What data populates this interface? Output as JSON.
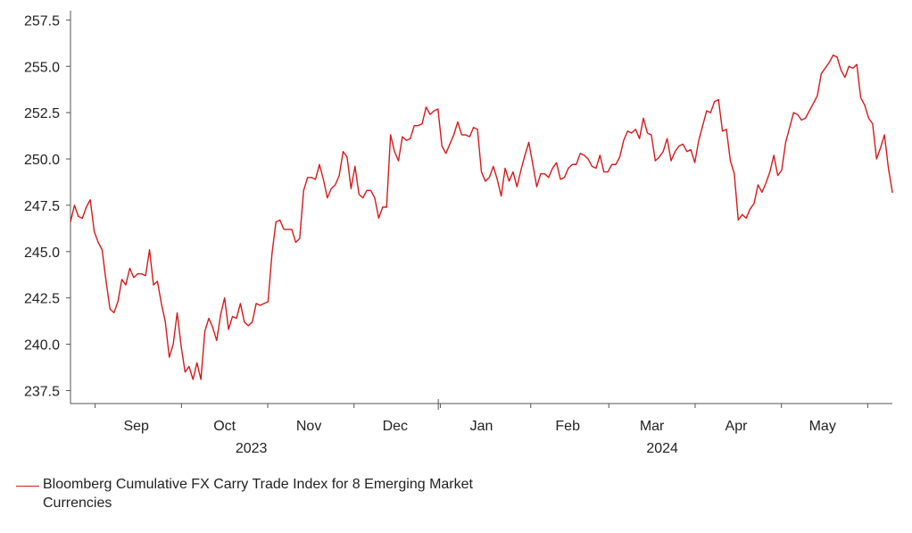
{
  "chart_data": {
    "type": "line",
    "ylim": [
      236.8,
      258.0
    ],
    "y_ticks": [
      "257.5",
      "255.0",
      "252.5",
      "250.0",
      "247.5",
      "245.0",
      "242.5",
      "240.0",
      "237.5"
    ],
    "y_tick_values": [
      257.5,
      255.0,
      252.5,
      250.0,
      247.5,
      245.0,
      242.5,
      240.0,
      237.5
    ],
    "x_range": [
      0,
      200
    ],
    "month_labels": [
      "Sep",
      "Oct",
      "Nov",
      "Dec",
      "Jan",
      "Feb",
      "Mar",
      "Apr",
      "May"
    ],
    "month_centers": [
      16,
      37.5,
      58,
      79,
      100,
      121,
      141.5,
      162,
      183
    ],
    "month_boundaries": [
      6,
      27,
      48,
      69,
      90,
      112,
      131,
      152,
      173,
      194
    ],
    "year_labels": [
      "2023",
      "2024"
    ],
    "year_centers": [
      44,
      144
    ],
    "year_divider": 89.5,
    "series": [
      {
        "name": "Bloomberg Cumulative FX Carry Trade Index for 8 Emerging Market Currencies",
        "color": "#d7191c",
        "values": [
          246.6,
          247.5,
          246.9,
          246.8,
          247.4,
          247.8,
          246.1,
          245.5,
          245.1,
          243.4,
          241.9,
          241.7,
          242.3,
          243.5,
          243.2,
          244.1,
          243.6,
          243.8,
          243.8,
          243.7,
          245.1,
          243.2,
          243.4,
          242.2,
          241.2,
          239.3,
          240.0,
          241.7,
          239.9,
          238.5,
          238.8,
          238.1,
          239.0,
          238.1,
          240.7,
          241.4,
          240.9,
          240.2,
          241.6,
          242.5,
          240.8,
          241.5,
          241.4,
          242.2,
          241.2,
          241.0,
          241.2,
          242.2,
          242.1,
          242.2,
          242.3,
          244.9,
          246.6,
          246.7,
          246.2,
          246.2,
          246.2,
          245.5,
          245.7,
          248.3,
          249.0,
          249.0,
          248.9,
          249.7,
          248.9,
          247.9,
          248.4,
          248.6,
          249.1,
          250.4,
          250.1,
          248.4,
          249.6,
          248.1,
          247.9,
          248.3,
          248.3,
          247.9,
          246.8,
          247.4,
          247.4,
          251.3,
          250.4,
          249.9,
          251.2,
          251.0,
          251.1,
          251.8,
          251.8,
          251.9,
          252.8,
          252.4,
          252.6,
          252.7,
          250.7,
          250.3,
          250.8,
          251.3,
          252.0,
          251.3,
          251.3,
          251.2,
          251.7,
          251.6,
          249.3,
          248.8,
          249.0,
          249.6,
          248.9,
          248.0,
          249.5,
          248.8,
          249.3,
          248.5,
          249.4,
          250.2,
          250.9,
          249.7,
          248.5,
          249.2,
          249.2,
          249.0,
          249.5,
          249.8,
          248.9,
          249.0,
          249.5,
          249.7,
          249.7,
          250.3,
          250.2,
          250.0,
          249.6,
          249.5,
          250.2,
          249.3,
          249.3,
          249.7,
          249.7,
          250.1,
          251.0,
          251.5,
          251.4,
          251.6,
          251.1,
          252.2,
          251.4,
          251.3,
          249.9,
          250.1,
          250.4,
          251.1,
          249.9,
          250.4,
          250.7,
          250.8,
          250.4,
          250.5,
          249.8,
          251.0,
          251.8,
          252.6,
          252.5,
          253.1,
          253.2,
          251.5,
          251.6,
          249.9,
          249.2,
          246.7,
          247.0,
          246.8,
          247.3,
          247.6,
          248.6,
          248.2,
          248.7,
          249.3,
          250.2,
          249.1,
          249.4,
          250.9,
          251.7,
          252.5,
          252.4,
          252.1,
          252.2,
          252.6,
          253.0,
          253.4,
          254.6,
          254.9,
          255.2,
          255.6,
          255.5,
          254.8,
          254.4,
          255.0,
          254.9,
          255.1,
          253.3,
          252.9,
          252.2,
          251.9,
          250.0,
          250.6,
          251.3,
          249.5,
          248.2
        ]
      }
    ]
  },
  "legend": {
    "label": "Bloomberg Cumulative FX Carry Trade Index for 8 Emerging Market Currencies",
    "color": "#d7191c"
  }
}
